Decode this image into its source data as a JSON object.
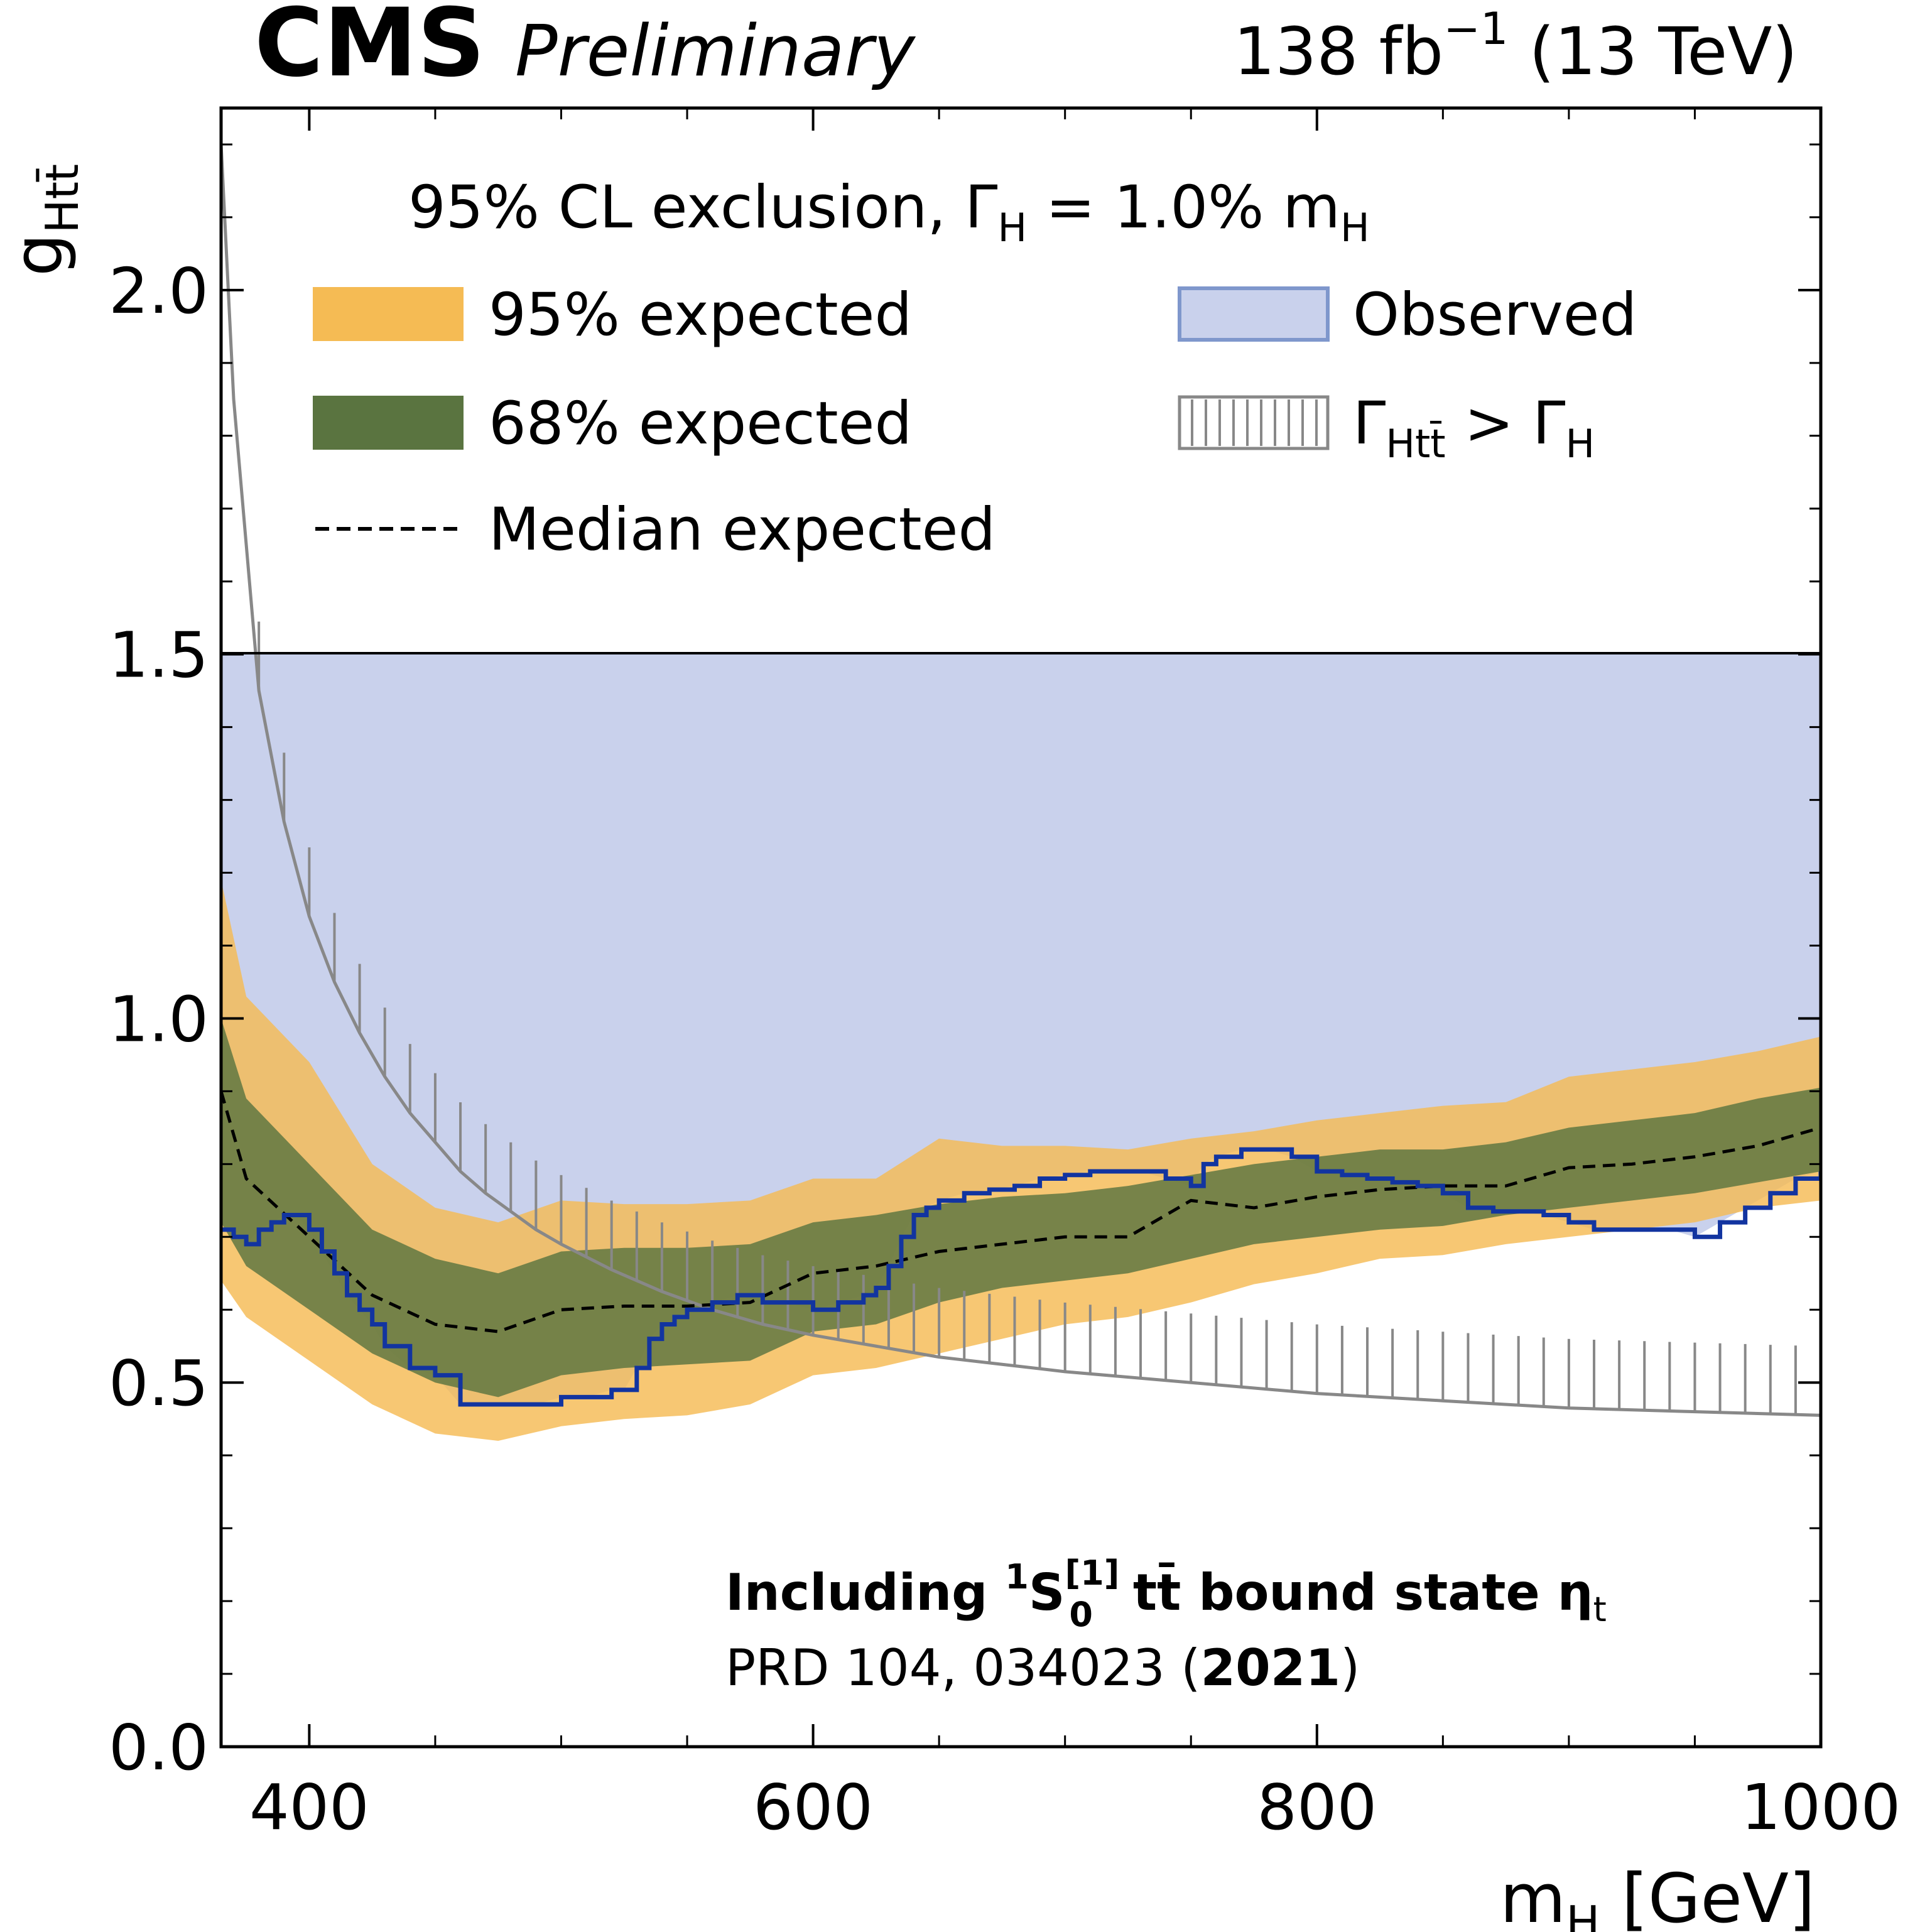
{
  "header": {
    "experiment": "CMS",
    "status": "Preliminary",
    "lumi_value": "138 fb",
    "lumi_exponent": "−1",
    "lumi_energy": " (13 TeV)"
  },
  "legend": {
    "title_prefix": "95% CL exclusion, Γ",
    "title_sub": "H",
    "title_suffix": " = 1.0% m",
    "title_sub2": "H",
    "entries": {
      "exp95": "95% expected",
      "exp68": "68% expected",
      "median": "Median expected",
      "observed": "Observed",
      "width_gamma": "Γ",
      "width_sub": "Htt̄",
      "width_mid": " > Γ",
      "width_sub2": "H"
    }
  },
  "annotation": {
    "line1_prefix": "Including ",
    "line1_sup": "1",
    "line1_S": "S",
    "line1_state_sup": "[1]",
    "line1_state_sub": "0",
    "line1_suffix": " tt̄ bound state η",
    "line1_sub": "t",
    "line2_prefix": "PRD 104, 034023 (",
    "line2_year": "2021",
    "line2_suffix": ")"
  },
  "chart_data": {
    "type": "line",
    "title": "",
    "xlabel": "m",
    "xlabel_sub": "H",
    "xlabel_unit": " [GeV]",
    "ylabel": "g",
    "ylabel_sub": "Htt̄",
    "xlim": [
      365,
      1000
    ],
    "ylim": [
      0.0,
      2.25
    ],
    "x_ticks": [
      400,
      600,
      800,
      1000
    ],
    "x_ticklabels": [
      "400",
      "600",
      "800",
      "1000"
    ],
    "y_ticks": [
      0.0,
      0.5,
      1.0,
      1.5,
      2.0
    ],
    "y_ticklabels": [
      "0.0",
      "0.5",
      "1.0",
      "1.5",
      "2.0"
    ],
    "y_plot_max_shaded": 1.5,
    "colors": {
      "exp95": "#f5bb54",
      "exp68": "#5a7440",
      "observed": "#c9d1ec",
      "observed_line": "#1234a0",
      "median": "#000000",
      "width": "#888888"
    },
    "mass_points": [
      365,
      375,
      400,
      425,
      450,
      475,
      500,
      525,
      550,
      575,
      600,
      625,
      650,
      675,
      700,
      725,
      750,
      775,
      800,
      825,
      850,
      875,
      900,
      925,
      950,
      975,
      1000
    ],
    "expected_95_low": [
      0.64,
      0.59,
      0.53,
      0.47,
      0.43,
      0.42,
      0.44,
      0.45,
      0.455,
      0.47,
      0.51,
      0.52,
      0.54,
      0.56,
      0.58,
      0.59,
      0.61,
      0.635,
      0.65,
      0.67,
      0.675,
      0.69,
      0.7,
      0.71,
      0.72,
      0.74,
      0.75
    ],
    "expected_68_low": [
      0.72,
      0.66,
      0.6,
      0.54,
      0.5,
      0.48,
      0.51,
      0.52,
      0.525,
      0.53,
      0.57,
      0.58,
      0.61,
      0.63,
      0.64,
      0.65,
      0.67,
      0.69,
      0.7,
      0.71,
      0.715,
      0.73,
      0.74,
      0.75,
      0.76,
      0.775,
      0.79
    ],
    "expected_68_high": [
      1.0,
      0.89,
      0.8,
      0.71,
      0.67,
      0.65,
      0.68,
      0.685,
      0.685,
      0.69,
      0.72,
      0.73,
      0.745,
      0.755,
      0.76,
      0.77,
      0.785,
      0.8,
      0.81,
      0.82,
      0.82,
      0.83,
      0.85,
      0.86,
      0.87,
      0.89,
      0.905
    ],
    "expected_95_high": [
      1.19,
      1.03,
      0.94,
      0.8,
      0.74,
      0.72,
      0.75,
      0.745,
      0.745,
      0.75,
      0.78,
      0.78,
      0.835,
      0.825,
      0.825,
      0.82,
      0.835,
      0.845,
      0.86,
      0.87,
      0.88,
      0.885,
      0.92,
      0.93,
      0.94,
      0.955,
      0.975
    ],
    "median_expected": [
      0.9,
      0.78,
      0.7,
      0.62,
      0.58,
      0.57,
      0.6,
      0.605,
      0.605,
      0.61,
      0.65,
      0.66,
      0.68,
      0.69,
      0.7,
      0.7,
      0.75,
      0.74,
      0.755,
      0.765,
      0.77,
      0.77,
      0.795,
      0.8,
      0.81,
      0.825,
      0.85
    ],
    "observed_x": [
      365,
      370,
      375,
      380,
      385,
      390,
      395,
      400,
      405,
      410,
      415,
      420,
      425,
      430,
      440,
      450,
      460,
      470,
      480,
      490,
      500,
      510,
      520,
      525,
      530,
      535,
      540,
      545,
      550,
      560,
      570,
      580,
      590,
      600,
      610,
      620,
      625,
      630,
      635,
      640,
      645,
      650,
      660,
      670,
      680,
      690,
      700,
      710,
      720,
      730,
      740,
      750,
      755,
      760,
      770,
      780,
      790,
      800,
      810,
      820,
      830,
      840,
      850,
      860,
      870,
      880,
      890,
      900,
      910,
      920,
      930,
      940,
      950,
      960,
      970,
      980,
      990,
      1000
    ],
    "observed_y": [
      0.71,
      0.7,
      0.69,
      0.71,
      0.72,
      0.73,
      0.73,
      0.71,
      0.68,
      0.65,
      0.62,
      0.6,
      0.58,
      0.55,
      0.52,
      0.51,
      0.47,
      0.47,
      0.47,
      0.47,
      0.48,
      0.48,
      0.49,
      0.49,
      0.52,
      0.56,
      0.58,
      0.59,
      0.6,
      0.61,
      0.62,
      0.61,
      0.61,
      0.6,
      0.61,
      0.62,
      0.63,
      0.66,
      0.7,
      0.73,
      0.74,
      0.75,
      0.76,
      0.765,
      0.77,
      0.78,
      0.785,
      0.79,
      0.79,
      0.79,
      0.78,
      0.77,
      0.8,
      0.81,
      0.82,
      0.82,
      0.81,
      0.79,
      0.785,
      0.78,
      0.775,
      0.77,
      0.76,
      0.74,
      0.735,
      0.735,
      0.73,
      0.72,
      0.71,
      0.71,
      0.71,
      0.71,
      0.7,
      0.72,
      0.74,
      0.76,
      0.78,
      0.79
    ],
    "width_limit_x": [
      365,
      370,
      380,
      390,
      400,
      410,
      420,
      430,
      440,
      450,
      460,
      470,
      480,
      490,
      500,
      520,
      540,
      560,
      580,
      600,
      625,
      650,
      675,
      700,
      750,
      800,
      850,
      900,
      950,
      1000
    ],
    "width_limit_y": [
      2.2,
      1.85,
      1.45,
      1.27,
      1.14,
      1.05,
      0.98,
      0.92,
      0.87,
      0.83,
      0.79,
      0.76,
      0.735,
      0.71,
      0.69,
      0.655,
      0.625,
      0.6,
      0.58,
      0.565,
      0.55,
      0.535,
      0.525,
      0.515,
      0.5,
      0.485,
      0.475,
      0.465,
      0.46,
      0.455
    ]
  }
}
